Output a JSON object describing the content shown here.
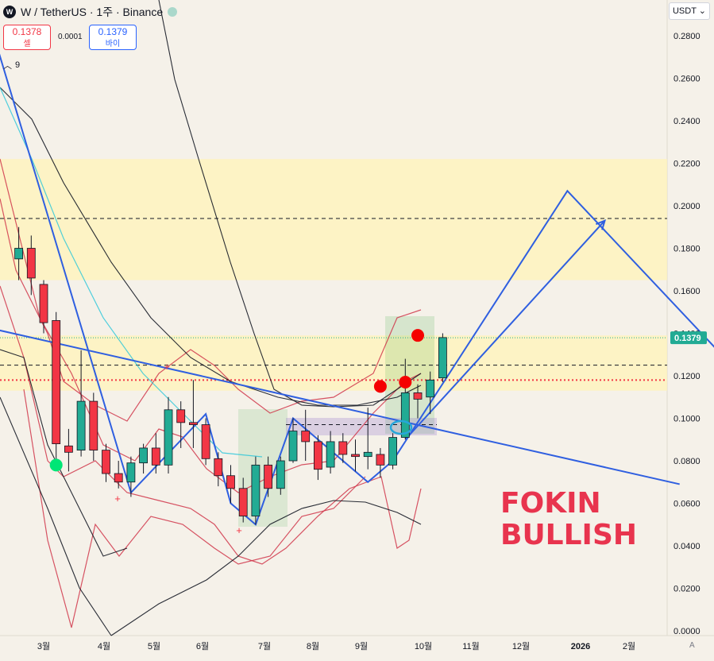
{
  "header": {
    "logo_icon": "W",
    "symbol": "W / TetherUS · 1주 · Binance",
    "live_icon": "market-open-dot"
  },
  "trade": {
    "sell_price": "0.1378",
    "sell_label": "셀",
    "spread": "0.0001",
    "buy_price": "0.1379",
    "buy_label": "바이"
  },
  "indicator_row": {
    "chevron_icon": "chevron-up-icon",
    "count": "9"
  },
  "currency_selector": {
    "label": "USDT",
    "chevron_icon": "chevron-down-icon"
  },
  "annotation_text": [
    "FOKIN",
    "BULLISH"
  ],
  "corner_label": "A",
  "colors": {
    "up": "#22ab94",
    "down": "#f23645",
    "price_line": "#22ab94",
    "zone": "#fff3b8",
    "projection": "#2f5fe0",
    "bands": "#d0364a",
    "text": "#131722"
  },
  "chart_data": {
    "type": "candlestick",
    "timeframe": "1주",
    "exchange": "Binance",
    "x_tick_labels": [
      "3월",
      "4월",
      "5월",
      "6월",
      "7월",
      "8월",
      "9월",
      "10월",
      "11월",
      "12월",
      "2026",
      "2월"
    ],
    "y_tick_labels": [
      "0.0000",
      "0.0200",
      "0.0400",
      "0.0600",
      "0.0800",
      "0.1000",
      "0.1200",
      "0.1400",
      "0.1600",
      "0.1800",
      "0.2000",
      "0.2200",
      "0.2400",
      "0.2600",
      "0.2800"
    ],
    "ylim": [
      0,
      0.29
    ],
    "current_price": 0.1379,
    "current_price_label": "0.1379",
    "candles": [
      {
        "w": -2,
        "o": 0.175,
        "h": 0.19,
        "c": 0.18,
        "l": 0.165
      },
      {
        "w": -1,
        "o": 0.18,
        "h": 0.186,
        "c": 0.166,
        "l": 0.158
      },
      {
        "w": 0,
        "o": 0.163,
        "h": 0.165,
        "c": 0.145,
        "l": 0.14
      },
      {
        "w": 1,
        "o": 0.146,
        "h": 0.15,
        "c": 0.088,
        "l": 0.08
      },
      {
        "w": 2,
        "o": 0.087,
        "h": 0.095,
        "c": 0.084,
        "l": 0.075
      },
      {
        "w": 3,
        "o": 0.085,
        "h": 0.132,
        "c": 0.108,
        "l": 0.082
      },
      {
        "w": 4,
        "o": 0.108,
        "h": 0.112,
        "c": 0.085,
        "l": 0.08
      },
      {
        "w": 5,
        "o": 0.085,
        "h": 0.088,
        "c": 0.074,
        "l": 0.07
      },
      {
        "w": 6,
        "o": 0.074,
        "h": 0.08,
        "c": 0.07,
        "l": 0.067
      },
      {
        "w": 7,
        "o": 0.07,
        "h": 0.082,
        "c": 0.079,
        "l": 0.063
      },
      {
        "w": 8,
        "o": 0.079,
        "h": 0.088,
        "c": 0.086,
        "l": 0.074
      },
      {
        "w": 9,
        "o": 0.086,
        "h": 0.093,
        "c": 0.078,
        "l": 0.074
      },
      {
        "w": 10,
        "o": 0.078,
        "h": 0.11,
        "c": 0.104,
        "l": 0.074
      },
      {
        "w": 11,
        "o": 0.104,
        "h": 0.108,
        "c": 0.098,
        "l": 0.086
      },
      {
        "w": 12,
        "o": 0.098,
        "h": 0.118,
        "c": 0.097,
        "l": 0.086
      },
      {
        "w": 13,
        "o": 0.097,
        "h": 0.1,
        "c": 0.081,
        "l": 0.078
      },
      {
        "w": 14,
        "o": 0.081,
        "h": 0.084,
        "c": 0.073,
        "l": 0.068
      },
      {
        "w": 15,
        "o": 0.073,
        "h": 0.078,
        "c": 0.067,
        "l": 0.06
      },
      {
        "w": 16,
        "o": 0.067,
        "h": 0.072,
        "c": 0.054,
        "l": 0.051
      },
      {
        "w": 17,
        "o": 0.054,
        "h": 0.082,
        "c": 0.078,
        "l": 0.05
      },
      {
        "w": 18,
        "o": 0.078,
        "h": 0.082,
        "c": 0.067,
        "l": 0.063
      },
      {
        "w": 19,
        "o": 0.067,
        "h": 0.082,
        "c": 0.08,
        "l": 0.064
      },
      {
        "w": 20,
        "o": 0.08,
        "h": 0.1,
        "c": 0.094,
        "l": 0.079
      },
      {
        "w": 21,
        "o": 0.094,
        "h": 0.104,
        "c": 0.089,
        "l": 0.08
      },
      {
        "w": 22,
        "o": 0.089,
        "h": 0.092,
        "c": 0.076,
        "l": 0.071
      },
      {
        "w": 23,
        "o": 0.077,
        "h": 0.094,
        "c": 0.089,
        "l": 0.074
      },
      {
        "w": 24,
        "o": 0.089,
        "h": 0.093,
        "c": 0.083,
        "l": 0.079
      },
      {
        "w": 25,
        "o": 0.083,
        "h": 0.09,
        "c": 0.082,
        "l": 0.075
      },
      {
        "w": 26,
        "o": 0.082,
        "h": 0.105,
        "c": 0.084,
        "l": 0.076
      },
      {
        "w": 27,
        "o": 0.083,
        "h": 0.086,
        "c": 0.078,
        "l": 0.072
      },
      {
        "w": 28,
        "o": 0.078,
        "h": 0.093,
        "c": 0.091,
        "l": 0.076
      },
      {
        "w": 29,
        "o": 0.091,
        "h": 0.128,
        "c": 0.112,
        "l": 0.09
      },
      {
        "w": 30,
        "o": 0.112,
        "h": 0.116,
        "c": 0.109,
        "l": 0.1
      },
      {
        "w": 31,
        "o": 0.11,
        "h": 0.122,
        "c": 0.118,
        "l": 0.102
      },
      {
        "w": 32,
        "o": 0.119,
        "h": 0.14,
        "c": 0.138,
        "l": 0.117
      }
    ],
    "resistance_zones": [
      [
        0.165,
        0.222
      ],
      [
        0.113,
        0.139
      ]
    ],
    "horizontal_levels": [
      {
        "value": 0.194,
        "style": "dashed"
      },
      {
        "value": 0.125,
        "style": "dashed"
      },
      {
        "value": 0.118,
        "style": "dotted-red"
      },
      {
        "value": 0.097,
        "style": "dashed"
      }
    ],
    "projection_path": [
      {
        "w": -4,
        "v": 0.28
      },
      {
        "w": 7,
        "v": 0.065
      },
      {
        "w": 13,
        "v": 0.102
      },
      {
        "w": 15,
        "v": 0.06
      },
      {
        "w": 17,
        "v": 0.05
      },
      {
        "w": 20,
        "v": 0.1
      },
      {
        "w": 26,
        "v": 0.07
      },
      {
        "w": 28,
        "v": 0.08
      },
      {
        "w": 42,
        "v": 0.207
      },
      {
        "w": 55,
        "v": 0.126
      },
      {
        "w": 60,
        "v": 0.255
      }
    ],
    "projection_arrow": [
      {
        "w": 29,
        "v": 0.09
      },
      {
        "w": 45,
        "v": 0.193
      }
    ],
    "trendline": [
      {
        "w": -4,
        "v": 0.142
      },
      {
        "w": 51,
        "v": 0.069
      }
    ],
    "markers": [
      {
        "type": "green-dot",
        "w": 1,
        "v": 0.078
      },
      {
        "type": "red-dot",
        "w": 27,
        "v": 0.115
      },
      {
        "type": "red-dot",
        "w": 29,
        "v": 0.117
      },
      {
        "type": "red-dot",
        "w": 30,
        "v": 0.139
      }
    ]
  }
}
